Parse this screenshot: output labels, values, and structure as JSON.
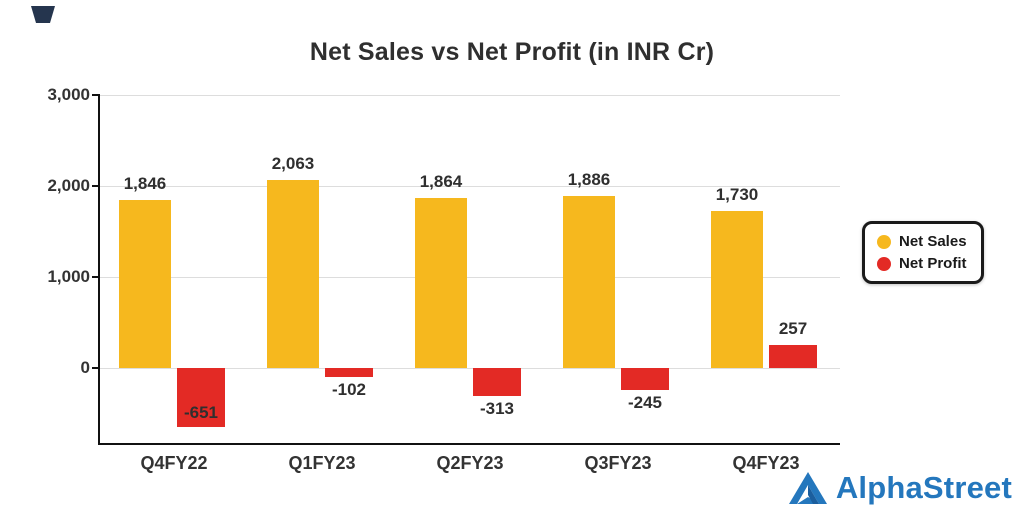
{
  "title": "Net Sales vs Net Profit (in INR Cr)",
  "chart_data": {
    "type": "bar",
    "categories": [
      "Q4FY22",
      "Q1FY23",
      "Q2FY23",
      "Q3FY23",
      "Q4FY23"
    ],
    "series": [
      {
        "name": "Net Sales",
        "color": "#F6B81E",
        "values": [
          1846,
          2063,
          1864,
          1886,
          1730
        ],
        "labels": [
          "1,846",
          "2,063",
          "1,864",
          "1,886",
          "1,730"
        ]
      },
      {
        "name": "Net Profit",
        "color": "#E32A25",
        "values": [
          -651,
          -102,
          -313,
          -245,
          257
        ],
        "labels": [
          "-651",
          "-102",
          "-313",
          "-245",
          "257"
        ]
      }
    ],
    "yticks": [
      0,
      1000,
      2000,
      3000
    ],
    "ytick_labels": [
      "0",
      "1,000",
      "2,000",
      "3,000"
    ],
    "ylim": [
      -824,
      3000
    ],
    "grid": true,
    "legend_position": "right"
  },
  "branding": {
    "name": "AlphaStreet",
    "color": "#2477BD"
  }
}
